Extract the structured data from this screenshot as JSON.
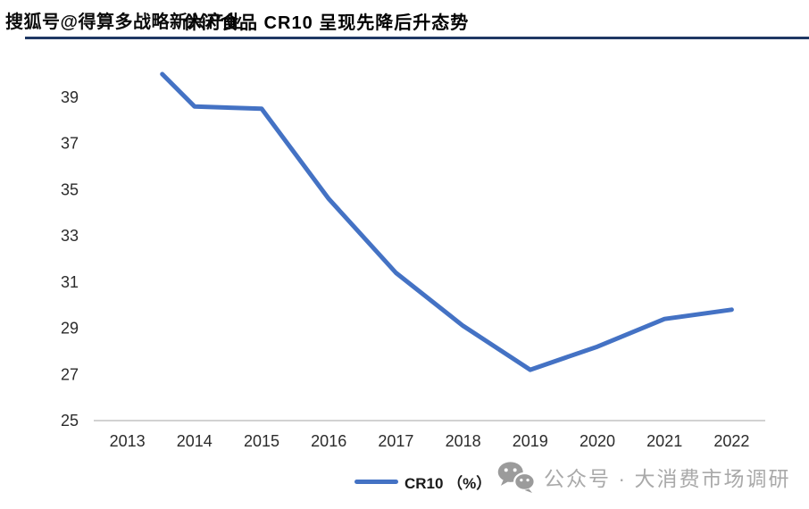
{
  "header": {
    "watermark": "搜狐号@得算多战略新兴产业",
    "title": "休闲食品 CR10 呈现先降后升态势"
  },
  "chart_data": {
    "type": "line",
    "title": "休闲食品 CR10 呈现先降后升态势",
    "categories": [
      "2013",
      "2014",
      "2015",
      "2016",
      "2017",
      "2018",
      "2019",
      "2020",
      "2021",
      "2022"
    ],
    "series": [
      {
        "name": "CR10 （%）",
        "values": [
          40.0,
          38.6,
          38.5,
          34.6,
          31.4,
          29.1,
          27.2,
          28.2,
          29.4,
          29.8
        ]
      }
    ],
    "xlabel": "",
    "ylabel": "",
    "ylim": [
      25,
      40
    ],
    "yticks": [
      25,
      27,
      29,
      31,
      33,
      35,
      37,
      39
    ],
    "grid": false,
    "legend_position": "bottom-center",
    "annotations": []
  },
  "legend": {
    "swatch_icon": "line-swatch",
    "label": "CR10 （%）"
  },
  "footer": {
    "icon": "wechat-icon",
    "text": "公众号 · 大消费市场调研"
  },
  "colors": {
    "line": "#4472C4",
    "header_rule": "#1F3864",
    "axis_line": "#D2D2D2",
    "tick_text": "#2b2b2b",
    "footer_text": "#a9a9a9",
    "wechat_icon": "#9b9b9b"
  }
}
